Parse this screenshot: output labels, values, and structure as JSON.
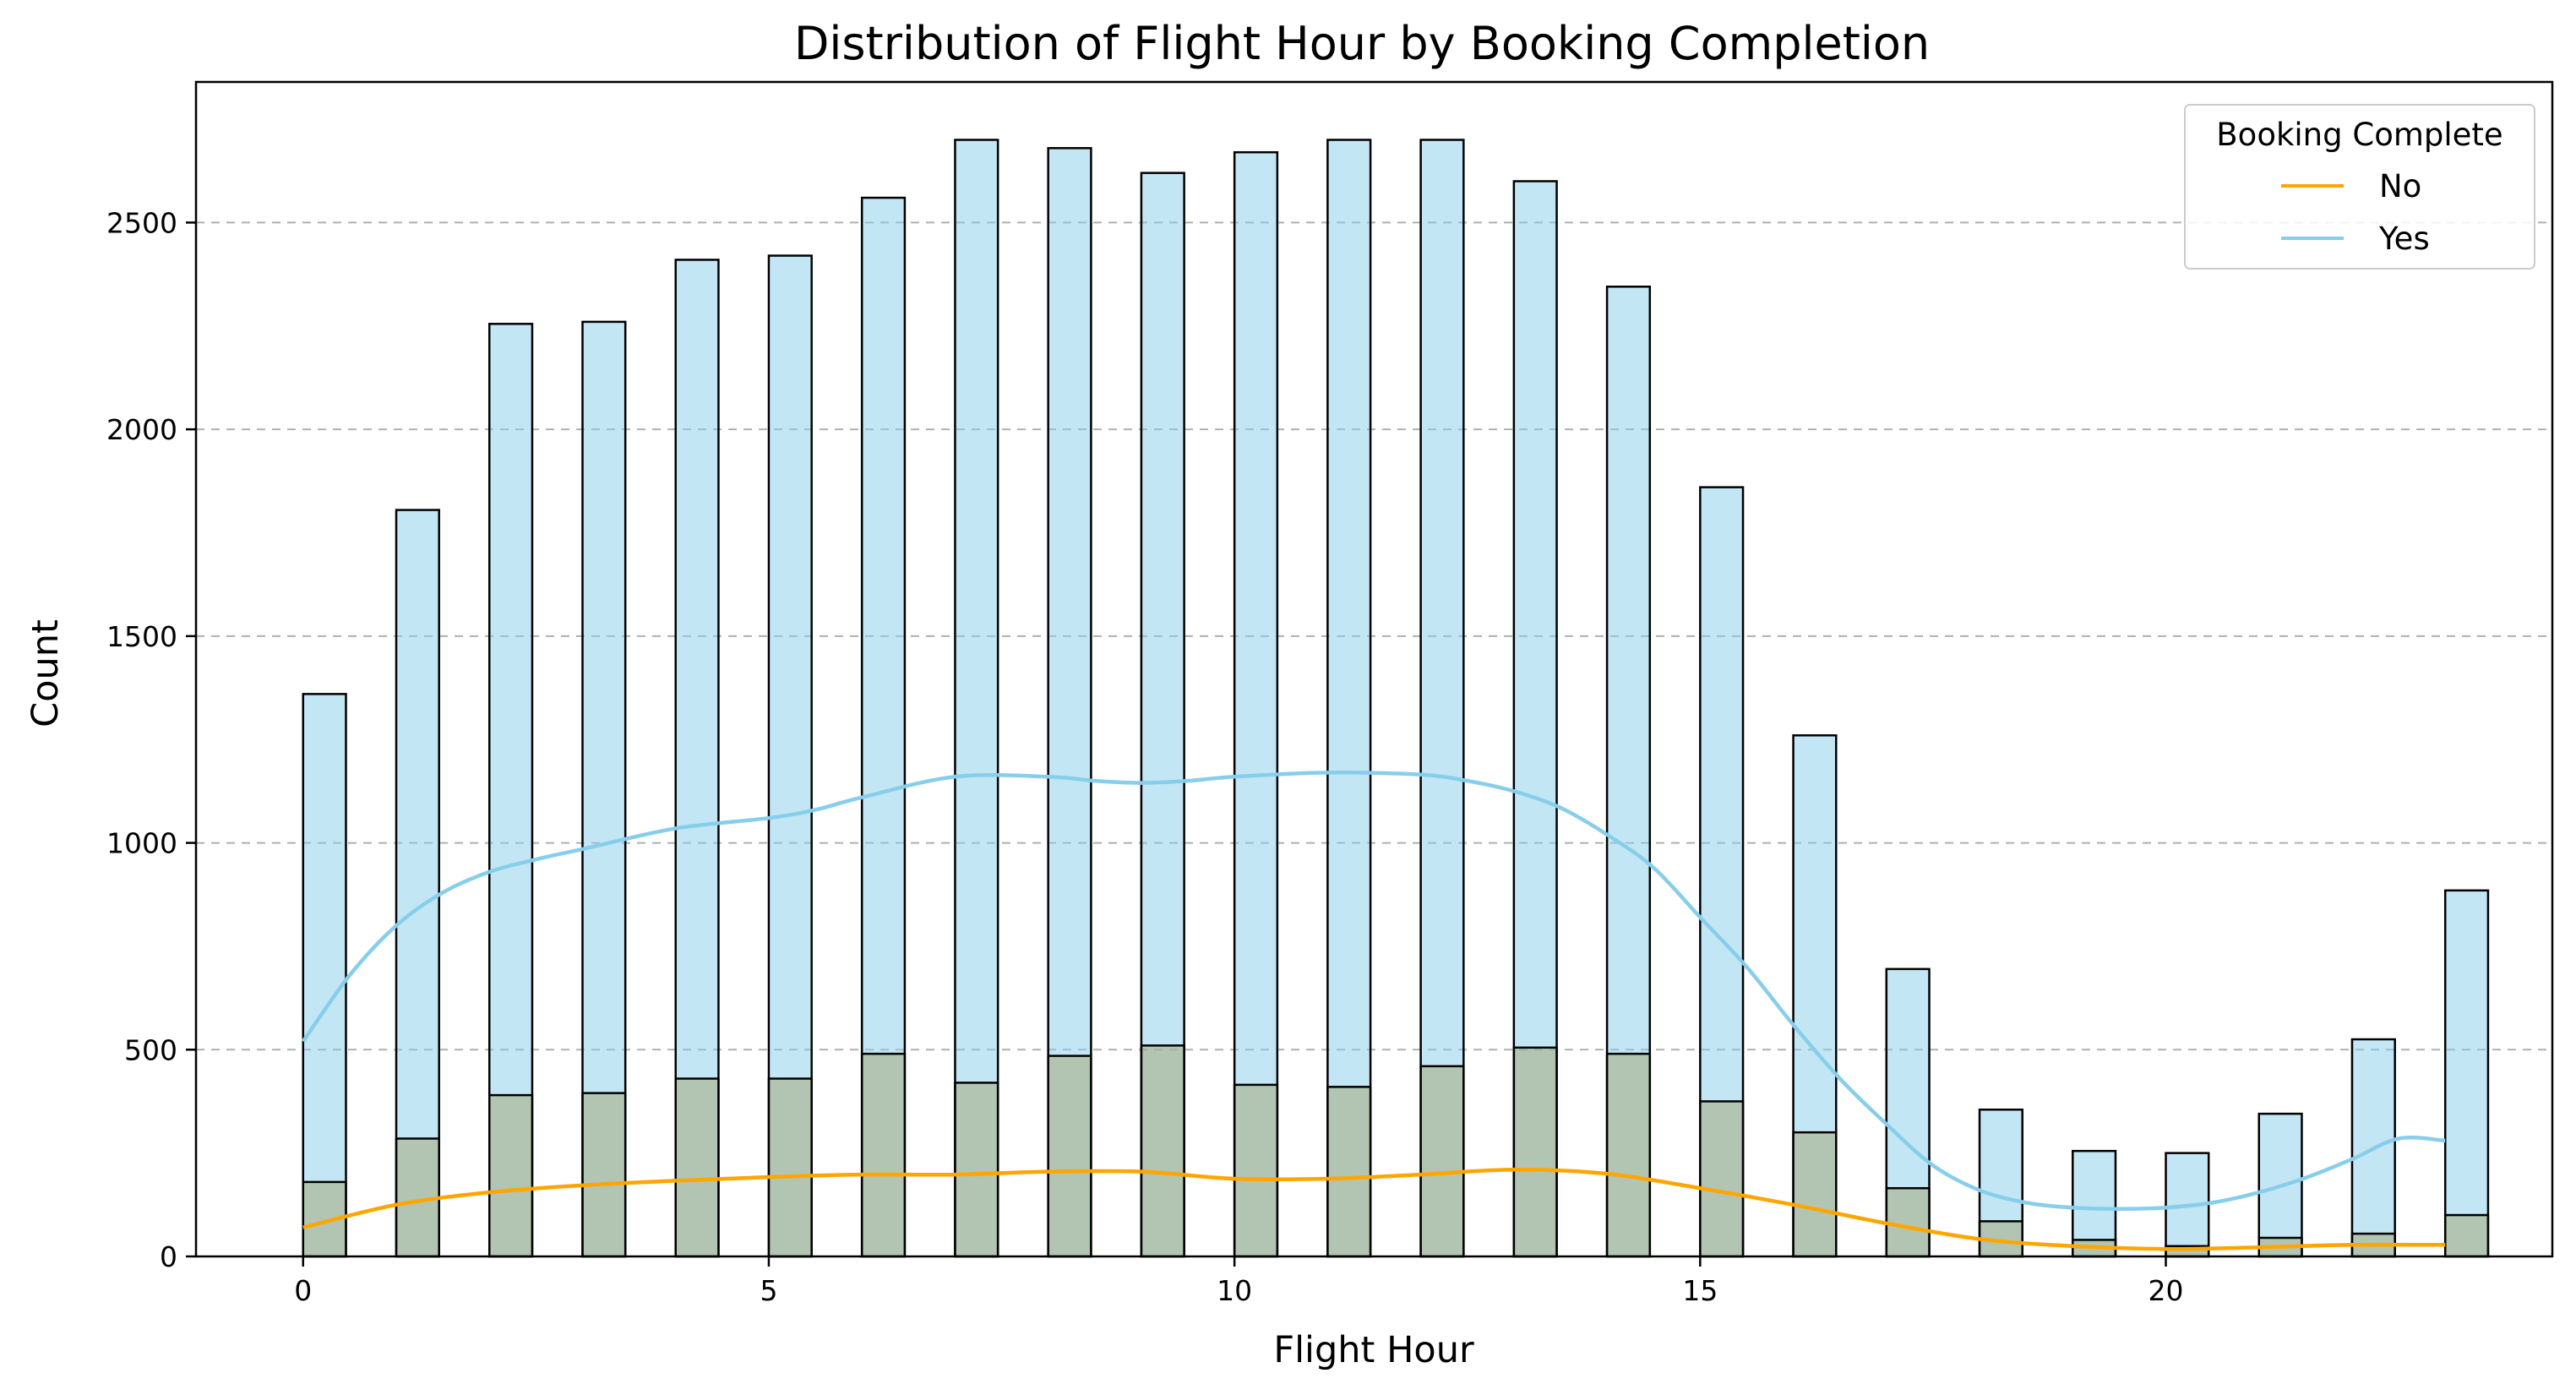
{
  "chart_data": {
    "type": "bar",
    "title": "Distribution of Flight Hour by Booking Completion",
    "xlabel": "Flight Hour",
    "ylabel": "Count",
    "xlim": [
      -1.15,
      24.15
    ],
    "ylim": [
      0,
      2840
    ],
    "xticks": [
      0,
      5,
      10,
      15,
      20
    ],
    "yticks": [
      0,
      500,
      1000,
      1500,
      2000,
      2500
    ],
    "grid": "y-dashed",
    "bin_width": 0.46,
    "legend": {
      "title": "Booking Complete",
      "placement": "top-right",
      "entries": [
        {
          "label": "No",
          "color": "#ffa500"
        },
        {
          "label": "Yes",
          "color": "#87ceeb"
        }
      ]
    },
    "x": [
      0,
      1,
      2,
      3,
      4,
      5,
      6,
      7,
      8,
      9,
      10,
      11,
      12,
      13,
      14,
      15,
      16,
      17,
      18,
      19,
      20,
      21,
      22,
      23
    ],
    "series": [
      {
        "name": "Yes",
        "color": "#87ceeb",
        "values": [
          1360,
          1805,
          2255,
          2260,
          2410,
          2420,
          2560,
          2700,
          2680,
          2620,
          2670,
          2700,
          2700,
          2600,
          2345,
          1860,
          1260,
          695,
          355,
          255,
          250,
          345,
          525,
          885
        ],
        "kde": [
          [
            0,
            520
          ],
          [
            0.5,
            680
          ],
          [
            1,
            800
          ],
          [
            1.5,
            880
          ],
          [
            2,
            930
          ],
          [
            2.5,
            960
          ],
          [
            3,
            985
          ],
          [
            4,
            1035
          ],
          [
            5,
            1060
          ],
          [
            5.5,
            1080
          ],
          [
            6,
            1110
          ],
          [
            7,
            1160
          ],
          [
            8,
            1160
          ],
          [
            8.5,
            1150
          ],
          [
            9,
            1145
          ],
          [
            9.5,
            1150
          ],
          [
            10,
            1160
          ],
          [
            11,
            1170
          ],
          [
            12,
            1165
          ],
          [
            12.5,
            1150
          ],
          [
            13,
            1125
          ],
          [
            13.5,
            1085
          ],
          [
            14,
            1020
          ],
          [
            14.5,
            940
          ],
          [
            15,
            820
          ],
          [
            15.5,
            700
          ],
          [
            16,
            560
          ],
          [
            16.5,
            430
          ],
          [
            17,
            320
          ],
          [
            17.5,
            220
          ],
          [
            18,
            160
          ],
          [
            18.5,
            130
          ],
          [
            19,
            118
          ],
          [
            19.5,
            115
          ],
          [
            20,
            118
          ],
          [
            20.5,
            130
          ],
          [
            21,
            155
          ],
          [
            21.5,
            190
          ],
          [
            22,
            235
          ],
          [
            22.5,
            285
          ],
          [
            23,
            280
          ]
        ]
      },
      {
        "name": "No",
        "color": "#ffa500",
        "values": [
          180,
          285,
          390,
          395,
          430,
          430,
          490,
          420,
          485,
          510,
          415,
          410,
          460,
          505,
          490,
          375,
          300,
          165,
          85,
          40,
          25,
          45,
          55,
          100
        ],
        "kde": [
          [
            0,
            70
          ],
          [
            1,
            125
          ],
          [
            2,
            155
          ],
          [
            3,
            172
          ],
          [
            4,
            183
          ],
          [
            5,
            192
          ],
          [
            6,
            198
          ],
          [
            7,
            198
          ],
          [
            8,
            205
          ],
          [
            9,
            205
          ],
          [
            10,
            188
          ],
          [
            11,
            188
          ],
          [
            12,
            198
          ],
          [
            13,
            210
          ],
          [
            14,
            200
          ],
          [
            15,
            165
          ],
          [
            16,
            125
          ],
          [
            17,
            80
          ],
          [
            18,
            42
          ],
          [
            19,
            25
          ],
          [
            20,
            18
          ],
          [
            21,
            22
          ],
          [
            22,
            28
          ],
          [
            23,
            28
          ]
        ]
      }
    ]
  }
}
